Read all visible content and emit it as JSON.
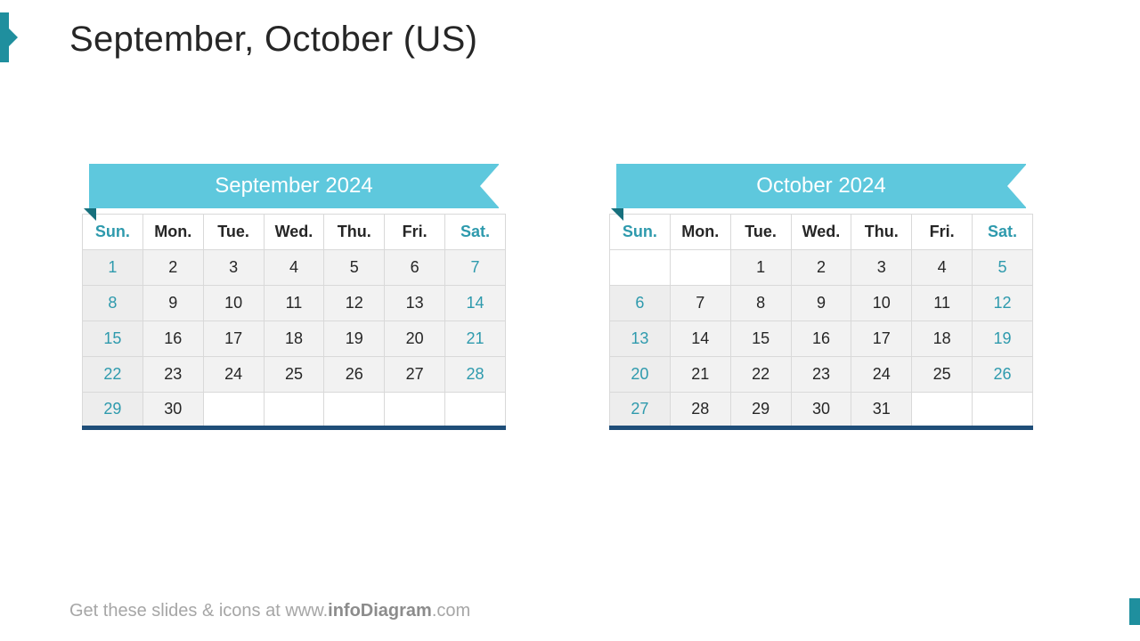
{
  "title": "September, October (US)",
  "footer": {
    "prefix": "Get these slides & icons at www.",
    "brand": "infoDiagram",
    "suffix": ".com"
  },
  "colors": {
    "accent_teal": "#1f8f9e",
    "ribbon": "#5ec8dd",
    "ribbon_tail": "#17707d",
    "table_border": "#d9d9d9",
    "table_bottom": "#1f4e79",
    "weekend_text": "#2e9aad",
    "cell_bg": "#f2f2f2",
    "weekend_left_bg": "#ededed",
    "text": "#262626",
    "footer_text": "#a6a6a6"
  },
  "day_headers": [
    "Sun.",
    "Mon.",
    "Tue.",
    "Wed.",
    "Thu.",
    "Fri.",
    "Sat."
  ],
  "weekend_cols": [
    0,
    6
  ],
  "calendars": [
    {
      "label": "September 2024",
      "rows": [
        [
          "1",
          "2",
          "3",
          "4",
          "5",
          "6",
          "7"
        ],
        [
          "8",
          "9",
          "10",
          "11",
          "12",
          "13",
          "14"
        ],
        [
          "15",
          "16",
          "17",
          "18",
          "19",
          "20",
          "21"
        ],
        [
          "22",
          "23",
          "24",
          "25",
          "26",
          "27",
          "28"
        ],
        [
          "29",
          "30",
          "",
          "",
          "",
          "",
          ""
        ]
      ]
    },
    {
      "label": "October 2024",
      "rows": [
        [
          "",
          "",
          "1",
          "2",
          "3",
          "4",
          "5"
        ],
        [
          "6",
          "7",
          "8",
          "9",
          "10",
          "11",
          "12"
        ],
        [
          "13",
          "14",
          "15",
          "16",
          "17",
          "18",
          "19"
        ],
        [
          "20",
          "21",
          "22",
          "23",
          "24",
          "25",
          "26"
        ],
        [
          "27",
          "28",
          "29",
          "30",
          "31",
          "",
          ""
        ]
      ]
    }
  ]
}
